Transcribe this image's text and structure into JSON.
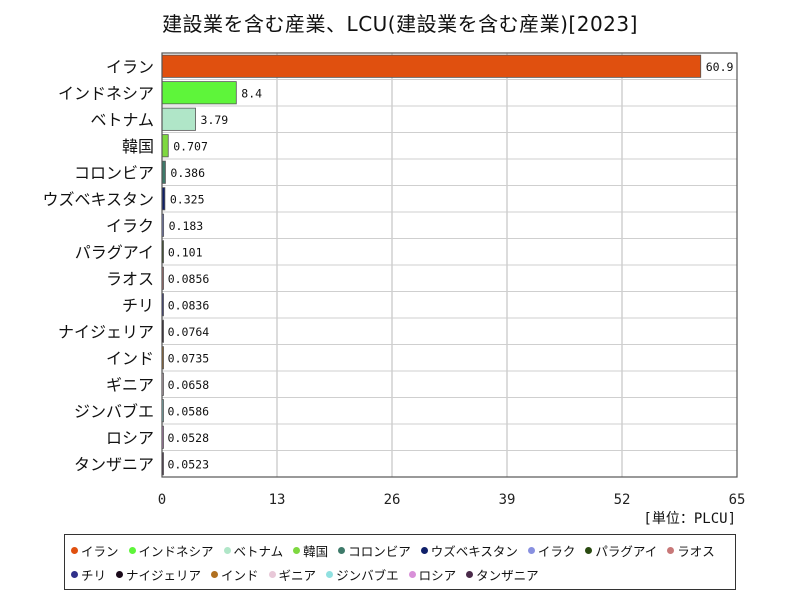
{
  "page": {
    "title": "建設業を含む産業、LCU(建設業を含む産業)[2023]"
  },
  "unit_label": "[単位：PLCU]",
  "chart_data": {
    "type": "bar",
    "orientation": "horizontal",
    "title": "建設業を含む産業、LCU(建設業を含む産業)[2023]",
    "categories": [
      "イラン",
      "インドネシア",
      "ベトナム",
      "韓国",
      "コロンビア",
      "ウズベキスタン",
      "イラク",
      "パラグアイ",
      "ラオス",
      "チリ",
      "ナイジェリア",
      "インド",
      "ギニア",
      "ジンバブエ",
      "ロシア",
      "タンザニア"
    ],
    "values": [
      60.9,
      8.4,
      3.79,
      0.707,
      0.386,
      0.325,
      0.183,
      0.101,
      0.0856,
      0.0836,
      0.0764,
      0.0735,
      0.0658,
      0.0586,
      0.0528,
      0.0523
    ],
    "value_labels": [
      "60.9",
      "8.4",
      "3.79",
      "0.707",
      "0.386",
      "0.325",
      "0.183",
      "0.101",
      "0.0856",
      "0.0836",
      "0.0764",
      "0.0735",
      "0.0658",
      "0.0586",
      "0.0528",
      "0.0523"
    ],
    "colors": [
      "#e0500f",
      "#5ef53a",
      "#b0e6c8",
      "#7ed840",
      "#3e7a6a",
      "#10206a",
      "#8890e0",
      "#2a4a10",
      "#c87878",
      "#30308a",
      "#1a0a1a",
      "#b07020",
      "#e8c8d8",
      "#90e0e0",
      "#d890d8",
      "#4a2a4a"
    ],
    "xlim": [
      0,
      65
    ],
    "xticks": [
      "0",
      "13",
      "26",
      "39",
      "52",
      "65"
    ],
    "grid": true,
    "legend_position": "bottom"
  }
}
